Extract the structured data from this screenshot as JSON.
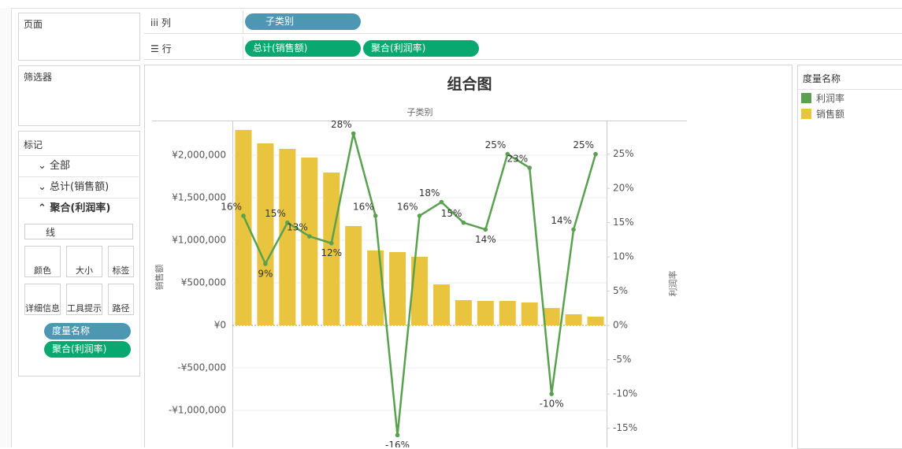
{
  "shelves": {
    "columns": {
      "label": "列",
      "pills": [
        "子类别"
      ]
    },
    "rows": {
      "label": "行",
      "pills": [
        "总计(销售额)",
        "聚合(利润率)"
      ]
    }
  },
  "pages": {
    "title": "页面"
  },
  "filters": {
    "title": "筛选器"
  },
  "marks": {
    "title": "标记",
    "items": [
      "全部",
      "总计(销售额)",
      "聚合(利润率)"
    ],
    "mark_type": "线",
    "buttons": [
      "颜色",
      "大小",
      "标签",
      "详细信息",
      "工具提示",
      "路径"
    ],
    "pills": [
      "度量名称",
      "聚合(利润率)"
    ]
  },
  "legend": {
    "title": "度量名称"
  },
  "chart_data": {
    "type": "combo",
    "title": "组合图",
    "x_label": "子类别",
    "y_label": "销售额",
    "y2_label": "利润率",
    "categories": [
      null,
      null,
      null,
      null,
      null,
      null,
      null,
      null,
      null,
      null,
      null,
      null,
      null,
      null,
      null,
      null,
      null
    ],
    "series": [
      {
        "name": "利润率",
        "color": "#59a14f",
        "type": "line",
        "axis": "y2",
        "values": [
          16,
          9,
          15,
          13,
          12,
          28,
          16,
          -16,
          16,
          18,
          15,
          14,
          25,
          23,
          -10,
          14,
          25
        ],
        "value_labels": [
          "16%",
          "9%",
          "15%",
          "13%",
          "12%",
          "28%",
          "16%",
          "-16%",
          "16%",
          "18%",
          "15%",
          "14%",
          "25%",
          "23%",
          "-10%",
          "14%",
          "25%"
        ]
      },
      {
        "name": "销售额",
        "color": "#e9c43f",
        "type": "bar",
        "values": [
          2296000,
          2139000,
          2074000,
          1972000,
          1796000,
          1167000,
          880000,
          861000,
          806000,
          481000,
          296000,
          287000,
          287000,
          269000,
          204000,
          130000,
          102000
        ]
      }
    ],
    "ylim": [
      -1435000,
      2407000
    ],
    "yticks": [
      {
        "value": -1000000,
        "label": "-¥1,000,000"
      },
      {
        "value": -500000,
        "label": "-¥500,000"
      },
      {
        "value": 0,
        "label": "¥0"
      },
      {
        "value": 500000,
        "label": "¥500,000"
      },
      {
        "value": 1000000,
        "label": "¥1,000,000"
      },
      {
        "value": 1500000,
        "label": "¥1,500,000"
      },
      {
        "value": 2000000,
        "label": "¥2,000,000"
      }
    ],
    "y2lim": [
      -17.8,
      29.9
    ],
    "y2ticks": [
      {
        "value": -15,
        "label": "-15%"
      },
      {
        "value": -10,
        "label": "-10%"
      },
      {
        "value": -5,
        "label": "-5%"
      },
      {
        "value": 0,
        "label": "0%"
      },
      {
        "value": 5,
        "label": "5%"
      },
      {
        "value": 10,
        "label": "10%"
      },
      {
        "value": 15,
        "label": "15%"
      },
      {
        "value": 20,
        "label": "20%"
      },
      {
        "value": 25,
        "label": "25%"
      }
    ],
    "grid": true
  }
}
